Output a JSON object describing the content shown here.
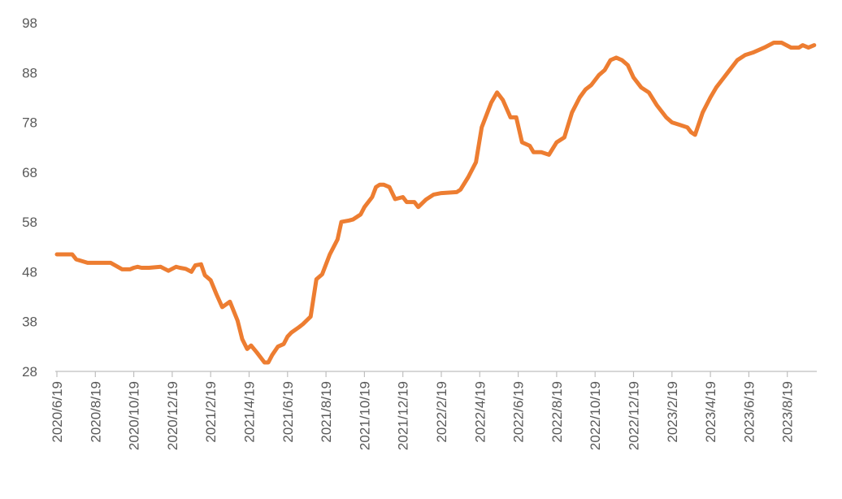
{
  "chart_data": {
    "type": "line",
    "title": "",
    "xlabel": "",
    "ylabel": "",
    "ylim": [
      28,
      98
    ],
    "yticks": [
      "98",
      "88",
      "78",
      "68",
      "58",
      "48",
      "38",
      "28"
    ],
    "xticks": [
      "2020/6/19",
      "2020/8/19",
      "2020/10/19",
      "2020/12/19",
      "2021/2/19",
      "2021/4/19",
      "2021/6/19",
      "2021/8/19",
      "2021/10/19",
      "2021/12/19",
      "2022/2/19",
      "2022/4/19",
      "2022/6/19",
      "2022/8/19",
      "2022/10/19",
      "2022/12/19",
      "2023/2/19",
      "2023/4/19",
      "2023/6/19",
      "2023/8/19"
    ],
    "grid": false,
    "legend": "none",
    "line_color": "#ED7D31",
    "series": [
      {
        "x": [
          0,
          0.22,
          0.4,
          0.5,
          0.8,
          1.0,
          1.1,
          1.4,
          1.7,
          1.9,
          2.0,
          2.1,
          2.2,
          2.4,
          2.7,
          2.9,
          3.1,
          3.2,
          3.35,
          3.5,
          3.6,
          3.75,
          3.85,
          4.0,
          4.15,
          4.3,
          4.5,
          4.7,
          4.82,
          4.95,
          5.05,
          5.2,
          5.4,
          5.5,
          5.6,
          5.75,
          5.9,
          6.0,
          6.1,
          6.3,
          6.4,
          6.6,
          6.75,
          6.9,
          7.1,
          7.3,
          7.4,
          7.6,
          7.7,
          7.9,
          8.0,
          8.2,
          8.3,
          8.4,
          8.5,
          8.65,
          8.8,
          9.0,
          9.1,
          9.3,
          9.4,
          9.6,
          9.8,
          10.0,
          10.2,
          10.4,
          10.5,
          10.7,
          10.9,
          11.05,
          11.2,
          11.3,
          11.45,
          11.6,
          11.8,
          11.95,
          12.1,
          12.3,
          12.4,
          12.6,
          12.8,
          13.0,
          13.2,
          13.4,
          13.6,
          13.75,
          13.9,
          14.1,
          14.25,
          14.4,
          14.55,
          14.7,
          14.85,
          15.0,
          15.2,
          15.4,
          15.6,
          15.85,
          16.0,
          16.2,
          16.4,
          16.5,
          16.6,
          16.8,
          17.0,
          17.15,
          17.3,
          17.5,
          17.7,
          17.9,
          18.1,
          18.4,
          18.65,
          18.85,
          19.1,
          19.3,
          19.4,
          19.55,
          19.7
        ],
        "values": [
          51.5,
          51.5,
          51.5,
          50.5,
          49.8,
          49.8,
          49.8,
          49.8,
          48.5,
          48.5,
          48.8,
          49,
          48.8,
          48.8,
          49,
          48.2,
          49,
          48.8,
          48.6,
          48,
          49.3,
          49.5,
          47.3,
          46.3,
          43.5,
          40.9,
          42,
          38.2,
          34.5,
          32.5,
          33.2,
          31.8,
          29.8,
          29.8,
          31.3,
          33,
          33.5,
          35,
          35.8,
          36.9,
          37.5,
          39,
          46.5,
          47.5,
          51.5,
          54.5,
          58,
          58.3,
          58.5,
          59.5,
          61,
          63,
          65,
          65.5,
          65.5,
          65,
          62.6,
          63,
          62,
          62,
          61,
          62.5,
          63.5,
          63.8,
          63.9,
          64,
          64.5,
          67,
          70,
          77,
          80,
          82,
          84,
          82.5,
          79,
          79,
          74,
          73.3,
          72,
          72,
          71.5,
          74,
          75,
          80,
          83,
          84.6,
          85.5,
          87.5,
          88.5,
          90.5,
          91,
          90.5,
          89.5,
          87,
          85,
          84,
          81.5,
          79,
          78,
          77.5,
          77,
          76,
          75.5,
          80,
          83,
          85,
          86.5,
          88.5,
          90.5,
          91.5,
          92,
          93,
          94,
          94,
          93,
          93,
          93.5,
          93,
          93.5
        ]
      }
    ]
  }
}
